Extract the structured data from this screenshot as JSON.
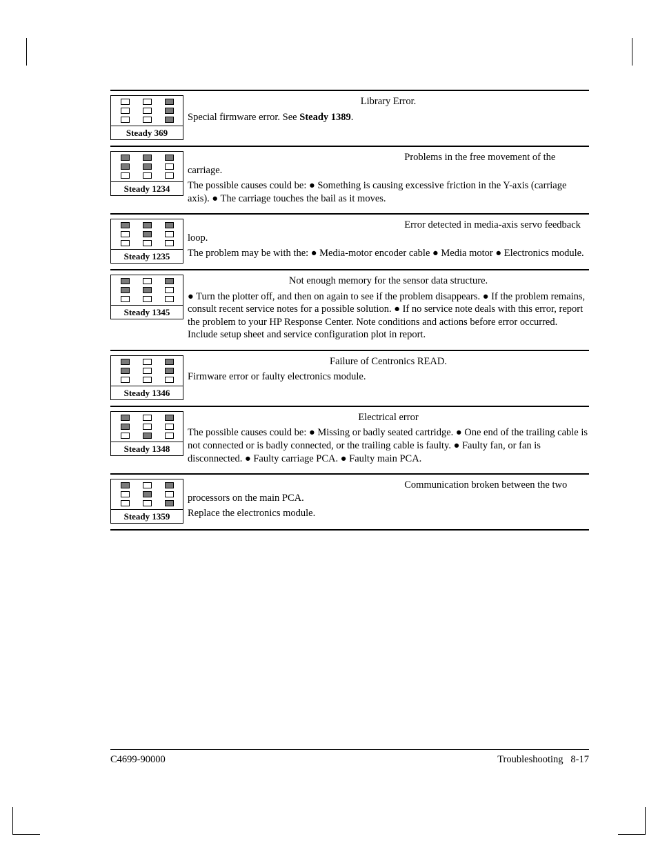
{
  "page": {
    "doc_number": "C4699-90000",
    "section": "Troubleshooting",
    "page_ref": "8-17"
  },
  "led_states": {
    "outline": "outline",
    "filled": "filled"
  },
  "entries": [
    {
      "code": "Steady 369",
      "leds": [
        [
          "outline",
          "outline",
          "filled"
        ],
        [
          "outline",
          "outline",
          "filled"
        ],
        [
          "outline",
          "outline",
          "filled"
        ]
      ],
      "title": "Library Error.",
      "body_pre": "Special firmware error. See ",
      "body_bold": "Steady 1389",
      "body_post": ".",
      "body2": ""
    },
    {
      "code": "Steady 1234",
      "leds": [
        [
          "filled",
          "filled",
          "filled"
        ],
        [
          "filled",
          "filled",
          "outline"
        ],
        [
          "outline",
          "outline",
          "outline"
        ]
      ],
      "title": "Problems in the free movement of the carriage.",
      "title_layout": "right-wrap",
      "body": "The possible causes could be: ● Something is causing excessive friction in the Y-axis (carriage axis). ● The carriage touches the bail as it moves."
    },
    {
      "code": "Steady 1235",
      "leds": [
        [
          "filled",
          "filled",
          "filled"
        ],
        [
          "outline",
          "filled",
          "outline"
        ],
        [
          "outline",
          "outline",
          "outline"
        ]
      ],
      "title": "Error detected in media-axis servo feedback loop.",
      "title_layout": "right-wrap",
      "body": "The problem may be with the: ● Media-motor encoder cable ● Media motor ● Electronics module."
    },
    {
      "code": "Steady 1345",
      "leds": [
        [
          "filled",
          "outline",
          "filled"
        ],
        [
          "filled",
          "filled",
          "outline"
        ],
        [
          "outline",
          "outline",
          "outline"
        ]
      ],
      "title": "Not enough memory for the sensor data structure.",
      "body": "● Turn the plotter off, and then on again to see if the problem disappears. ● If the problem remains, consult recent service notes for a possible solution. ● If no service note deals with this error, report the problem to your HP Response Center.  Note conditions and actions before error occurred.  Include setup sheet and service configuration plot in report."
    },
    {
      "code": "Steady 1346",
      "leds": [
        [
          "filled",
          "outline",
          "filled"
        ],
        [
          "filled",
          "outline",
          "filled"
        ],
        [
          "outline",
          "outline",
          "outline"
        ]
      ],
      "title": "Failure of Centronics READ.",
      "body": "Firmware error or faulty electronics module."
    },
    {
      "code": "Steady 1348",
      "leds": [
        [
          "filled",
          "outline",
          "filled"
        ],
        [
          "filled",
          "outline",
          "outline"
        ],
        [
          "outline",
          "filled",
          "outline"
        ]
      ],
      "title": "Electrical error",
      "body": "The possible causes could be: ● Missing or badly seated cartridge. ●   One end of the trailing cable is not connected or is badly connected, or the trailing cable is faulty. ● Faulty fan, or fan is disconnected. ● Faulty carriage PCA. ● Faulty main PCA."
    },
    {
      "code": "Steady 1359",
      "leds": [
        [
          "filled",
          "outline",
          "filled"
        ],
        [
          "outline",
          "filled",
          "outline"
        ],
        [
          "outline",
          "outline",
          "filled"
        ]
      ],
      "title": "Communication broken between the two processors on the main PCA.",
      "title_layout": "right-wrap",
      "body": "Replace the electronics module."
    }
  ],
  "end_rule": true
}
